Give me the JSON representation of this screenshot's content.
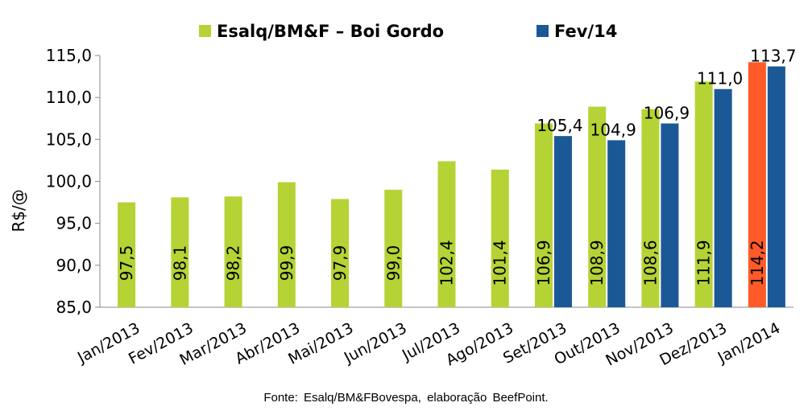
{
  "chart_data": {
    "type": "bar",
    "title": "",
    "ylabel": "R$/@",
    "xlabel": "",
    "ylim": [
      85,
      115
    ],
    "yticks": [
      "85,0",
      "90,0",
      "95,0",
      "100,0",
      "105,0",
      "110,0",
      "115,0"
    ],
    "ytick_values": [
      85,
      90,
      95,
      100,
      105,
      110,
      115
    ],
    "legend_position": "top-center",
    "categories": [
      "Jan/2013",
      "Fev/2013",
      "Mar/2013",
      "Abr/2013",
      "Mai/2013",
      "Jun/2013",
      "Jul/2013",
      "Ago/2013",
      "Set/2013",
      "Out/2013",
      "Nov/2013",
      "Dez/2013",
      "Jan/2014"
    ],
    "series": [
      {
        "name": "Esalq/BM&F – Boi Gordo",
        "color": "#B5D334",
        "highlight_color": "#FF5A28",
        "highlight_index": 12,
        "values": [
          97.5,
          98.1,
          98.2,
          99.9,
          97.9,
          99.0,
          102.4,
          101.4,
          106.9,
          108.9,
          108.6,
          111.9,
          114.2
        ],
        "labels": [
          "97,5",
          "98,1",
          "98,2",
          "99,9",
          "97,9",
          "99,0",
          "102,4",
          "101,4",
          "106,9",
          "108,9",
          "108,6",
          "111,9",
          "114,2"
        ]
      },
      {
        "name": "Fev/14",
        "color": "#1B5896",
        "values": [
          null,
          null,
          null,
          null,
          null,
          null,
          null,
          null,
          105.4,
          104.9,
          106.9,
          111.0,
          113.7
        ],
        "labels": [
          "",
          "",
          "",
          "",
          "",
          "",
          "",
          "",
          "105,4",
          "104,9",
          "106,9",
          "111,0",
          "113,7"
        ]
      }
    ]
  },
  "source": "Fonte:  Esalq/BM&FBovespa,  elaboração  BeefPoint."
}
